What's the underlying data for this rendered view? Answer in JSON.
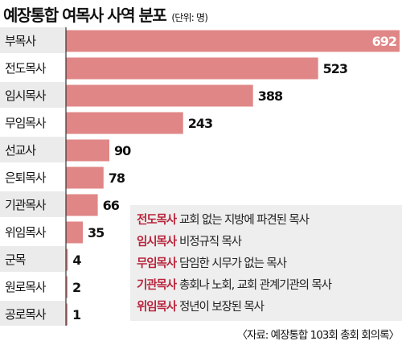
{
  "title": "예장통합 여목사 사역 분포",
  "unit_note": "(단위: 명)",
  "source": "〈자료: 예장통합 103회 총회 회의록〉",
  "colors": {
    "bar": "#e08686",
    "row_shade": "#ebebeb",
    "legend_term": "#b8243b"
  },
  "chart_data": {
    "type": "bar",
    "orientation": "horizontal",
    "categories": [
      "부목사",
      "전도목사",
      "임시목사",
      "무임목사",
      "선교사",
      "은퇴목사",
      "기관목사",
      "위임목사",
      "군목",
      "원로목사",
      "공로목사"
    ],
    "values": [
      692,
      523,
      388,
      243,
      90,
      78,
      66,
      35,
      4,
      2,
      1
    ],
    "value_labels": [
      "692",
      "523",
      "388",
      "243",
      "90",
      "78",
      "66",
      "35",
      "4",
      "2",
      "1"
    ],
    "xlim": [
      0,
      692
    ]
  },
  "legend": {
    "items": [
      {
        "term": "전도목사",
        "desc": "교회 없는 지방에 파견된 목사"
      },
      {
        "term": "임시목사",
        "desc": "비정규직 목사"
      },
      {
        "term": "무임목사",
        "desc": "담임한 시무가 없는 목사"
      },
      {
        "term": "기관목사",
        "desc": "총회나 노회, 교회 관계기관의 목사"
      },
      {
        "term": "위임목사",
        "desc": "정년이 보장된 목사"
      }
    ]
  }
}
